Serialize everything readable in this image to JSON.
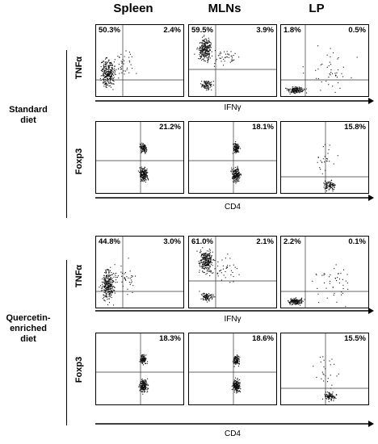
{
  "columns": [
    "Spleen",
    "MLNs",
    "LP"
  ],
  "groups": [
    {
      "label_lines": [
        "Standard",
        "diet"
      ]
    },
    {
      "label_lines": [
        "Quercetin-",
        "enriched",
        "diet"
      ]
    }
  ],
  "axes": {
    "tnf_label": "TNFα",
    "ifn_label": "IFNγ",
    "foxp3_label": "Foxp3",
    "cd4_label": "CD4"
  },
  "panels": [
    {
      "group": 0,
      "row": "tnf",
      "col": 0,
      "tl": "50.3%",
      "tr": "2.4%"
    },
    {
      "group": 0,
      "row": "tnf",
      "col": 1,
      "tl": "59.5%",
      "tr": "3.9%"
    },
    {
      "group": 0,
      "row": "tnf",
      "col": 2,
      "tl": "1.8%",
      "tr": "0.5%"
    },
    {
      "group": 0,
      "row": "foxp3",
      "col": 0,
      "tr": "21.2%"
    },
    {
      "group": 0,
      "row": "foxp3",
      "col": 1,
      "tr": "18.1%"
    },
    {
      "group": 0,
      "row": "foxp3",
      "col": 2,
      "tr": "15.8%"
    },
    {
      "group": 1,
      "row": "tnf",
      "col": 0,
      "tl": "44.8%",
      "tr": "3.0%"
    },
    {
      "group": 1,
      "row": "tnf",
      "col": 1,
      "tl": "61.0%",
      "tr": "2.1%"
    },
    {
      "group": 1,
      "row": "tnf",
      "col": 2,
      "tl": "2.2%",
      "tr": "0.1%"
    },
    {
      "group": 1,
      "row": "foxp3",
      "col": 0,
      "tr": "18.3%"
    },
    {
      "group": 1,
      "row": "foxp3",
      "col": 1,
      "tr": "18.6%"
    },
    {
      "group": 1,
      "row": "foxp3",
      "col": 2,
      "tr": "15.5%"
    }
  ]
}
